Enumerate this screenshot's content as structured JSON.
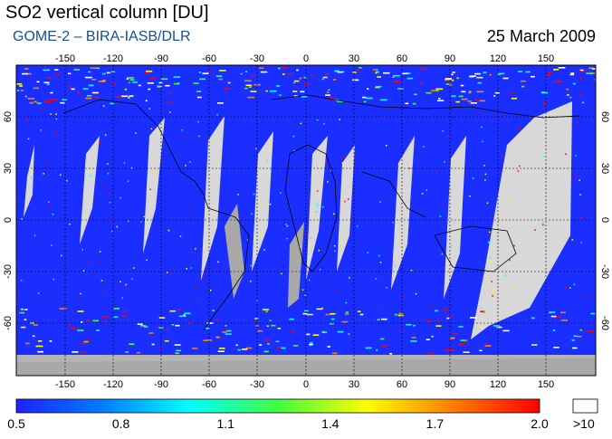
{
  "header": {
    "title": "SO2 vertical column [DU]",
    "subtitle": "GOME-2  –  BIRA-IASB/DLR",
    "date": "25 March 2009"
  },
  "map": {
    "longitude_ticks": [
      "-150",
      "-120",
      "-90",
      "-60",
      "-30",
      "0",
      "30",
      "60",
      "90",
      "120",
      "150"
    ],
    "latitude_ticks": [
      "60",
      "30",
      "0",
      "-30",
      "-60"
    ],
    "colors": {
      "background_no_data": "#b4b4b4",
      "swath_gap": "#d8d8d8",
      "low_value": "#1a2fff"
    }
  },
  "colorbar": {
    "tick_labels": [
      "0.5",
      "0.8",
      "1.1",
      "1.4",
      "1.7",
      "2.0"
    ],
    "overflow_label": ">10",
    "gradient": [
      "#2020ff",
      "#0080ff",
      "#00ffff",
      "#40ff40",
      "#ffff00",
      "#ff8000",
      "#ff0000"
    ]
  }
}
